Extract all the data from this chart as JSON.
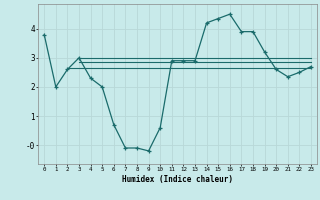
{
  "xlabel": "Humidex (Indice chaleur)",
  "ylabel": "",
  "background_color": "#c8eaea",
  "grid_color": "#b8d8d8",
  "line_color": "#1a6b6b",
  "x_ticks": [
    0,
    1,
    2,
    3,
    4,
    5,
    6,
    7,
    8,
    9,
    10,
    11,
    12,
    13,
    14,
    15,
    16,
    17,
    18,
    19,
    20,
    21,
    22,
    23
  ],
  "ylim": [
    -0.65,
    4.85
  ],
  "xlim": [
    -0.5,
    23.5
  ],
  "line1_x": [
    0,
    1,
    2,
    3,
    4,
    5,
    6,
    7,
    8,
    9,
    10,
    11,
    12,
    13,
    14,
    15,
    16,
    17,
    18,
    19,
    20,
    21,
    22,
    23
  ],
  "line1_y": [
    3.8,
    2.0,
    2.6,
    3.0,
    2.3,
    2.0,
    0.7,
    -0.1,
    -0.1,
    -0.2,
    0.6,
    2.9,
    2.9,
    2.9,
    4.2,
    4.35,
    4.5,
    3.9,
    3.9,
    3.2,
    2.6,
    2.35,
    2.5,
    2.7
  ],
  "line2_x": [
    2,
    23
  ],
  "line2_y": [
    2.65,
    2.65
  ],
  "line3_x": [
    3,
    23
  ],
  "line3_y": [
    3.0,
    3.0
  ],
  "line4_x": [
    3,
    23
  ],
  "line4_y": [
    2.85,
    2.85
  ],
  "ytick_labels": [
    "-0",
    "1",
    "2",
    "3",
    "4"
  ],
  "ytick_values": [
    0.0,
    1.0,
    2.0,
    3.0,
    4.0
  ]
}
